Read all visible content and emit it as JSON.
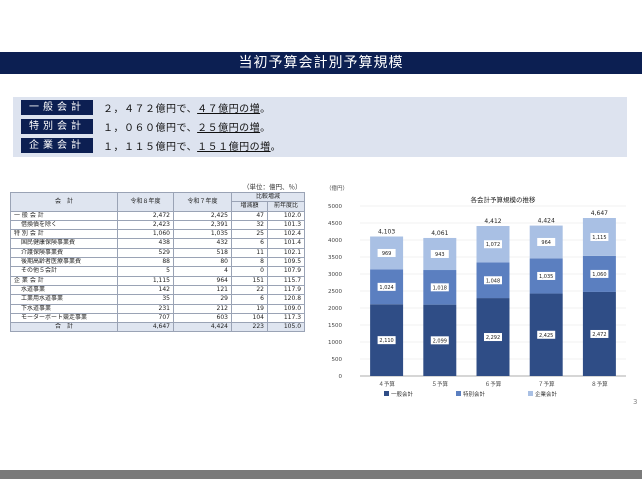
{
  "title": "当初予算会計別予算規模",
  "summary": [
    {
      "label": "一般会計",
      "pre": "２，４７２億円で、",
      "hl": "４７億円の増",
      "post": "。"
    },
    {
      "label": "特別会計",
      "pre": "１，０６０億円で、",
      "hl": "２５億円の増",
      "post": "。"
    },
    {
      "label": "企業会計",
      "pre": "１，１１５億円で、",
      "hl": "１５１億円の増",
      "post": "。"
    }
  ],
  "table": {
    "unit": "（単位：億円、％）",
    "headers": {
      "account": "会　計",
      "fy8": "令和８年度",
      "fy7": "令和７年度",
      "compare": "比較増減",
      "diff": "増減額",
      "ratio": "前年度比"
    },
    "rows": [
      {
        "name": "一 般 会 計",
        "fy8": "2,472",
        "fy7": "2,425",
        "diff": "47",
        "ratio": "102.0"
      },
      {
        "name": "借換債を除く",
        "fy8": "2,423",
        "fy7": "2,391",
        "diff": "32",
        "ratio": "101.3",
        "indent": 1
      },
      {
        "name": "特 別 会 計",
        "fy8": "1,060",
        "fy7": "1,035",
        "diff": "25",
        "ratio": "102.4"
      },
      {
        "name": "国民健康保険事業費",
        "fy8": "438",
        "fy7": "432",
        "diff": "6",
        "ratio": "101.4",
        "indent": 1
      },
      {
        "name": "介護保険事業費",
        "fy8": "529",
        "fy7": "518",
        "diff": "11",
        "ratio": "102.1",
        "indent": 1
      },
      {
        "name": "後期高齢者医療事業費",
        "fy8": "88",
        "fy7": "80",
        "diff": "8",
        "ratio": "109.5",
        "indent": 1
      },
      {
        "name": "その他５会計",
        "fy8": "5",
        "fy7": "4",
        "diff": "0",
        "ratio": "107.9",
        "indent": 1
      },
      {
        "name": "企 業 会 計",
        "fy8": "1,115",
        "fy7": "964",
        "diff": "151",
        "ratio": "115.7"
      },
      {
        "name": "水道事業",
        "fy8": "142",
        "fy7": "121",
        "diff": "22",
        "ratio": "117.9",
        "indent": 1
      },
      {
        "name": "工業用水道事業",
        "fy8": "35",
        "fy7": "29",
        "diff": "6",
        "ratio": "120.8",
        "indent": 1
      },
      {
        "name": "下水道事業",
        "fy8": "231",
        "fy7": "212",
        "diff": "19",
        "ratio": "109.0",
        "indent": 1
      },
      {
        "name": "モーターボート競走事業",
        "fy8": "707",
        "fy7": "603",
        "diff": "104",
        "ratio": "117.3",
        "indent": 1
      },
      {
        "name": "合　計",
        "fy8": "4,647",
        "fy7": "4,424",
        "diff": "223",
        "ratio": "105.0",
        "total": 1
      }
    ]
  },
  "chart_data": {
    "type": "bar",
    "stacked": true,
    "title": "各会計予算規模の推移",
    "ylabel": "（億円）",
    "ylim": [
      0,
      5000
    ],
    "yticks": [
      0,
      500,
      1000,
      1500,
      2000,
      2500,
      3000,
      3500,
      4000,
      4500,
      5000
    ],
    "categories": [
      "４予算",
      "５予算",
      "６予算",
      "７予算",
      "８予算"
    ],
    "series": [
      {
        "name": "一般会計",
        "values": [
          2110,
          2099,
          2292,
          2425,
          2472
        ],
        "color": "#2f4d86"
      },
      {
        "name": "特別会計",
        "values": [
          1024,
          1018,
          1048,
          1035,
          1060
        ],
        "color": "#5b7fc0"
      },
      {
        "name": "企業会計",
        "values": [
          969,
          943,
          1072,
          964,
          1115
        ],
        "color": "#a9c0e4"
      }
    ],
    "totals": [
      "4,103",
      "4,061",
      "4,412",
      "4,424",
      "4,647"
    ],
    "value_labels": [
      [
        "2,110",
        "2,099",
        "2,292",
        "2,425",
        "2,472"
      ],
      [
        "1,024",
        "1,018",
        "1,048",
        "1,035",
        "1,060"
      ],
      [
        "969",
        "943",
        "1,072",
        "964",
        "1,115"
      ]
    ]
  },
  "page_number": "3"
}
